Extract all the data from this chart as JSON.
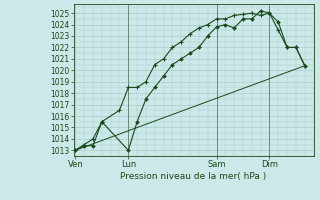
{
  "xlabel": "Pression niveau de la mer( hPa )",
  "bg_color": "#cce8e8",
  "grid_color": "#aacccc",
  "line_color": "#1a4a1a",
  "ylim": [
    1012.5,
    1025.8
  ],
  "yticks": [
    1013,
    1014,
    1015,
    1016,
    1017,
    1018,
    1019,
    1020,
    1021,
    1022,
    1023,
    1024,
    1025
  ],
  "xtick_labels": [
    "Ven",
    "Lun",
    "Sam",
    "Dim"
  ],
  "xtick_positions": [
    0,
    3,
    8,
    11
  ],
  "xlim": [
    -0.1,
    13.5
  ],
  "series1_x": [
    0,
    0.5,
    1.0,
    1.5,
    3.0,
    3.5,
    4.0,
    4.5,
    5.0,
    5.5,
    6.0,
    6.5,
    7.0,
    7.5,
    8.0,
    8.5,
    9.0,
    9.5,
    10.0,
    10.5,
    11.0,
    11.5,
    12.0,
    12.5,
    13.0
  ],
  "series1_y": [
    1013.0,
    1013.4,
    1013.4,
    1015.5,
    1013.0,
    1015.5,
    1017.5,
    1018.5,
    1019.5,
    1020.5,
    1021.0,
    1021.5,
    1022.0,
    1023.0,
    1023.8,
    1024.0,
    1023.7,
    1024.5,
    1024.5,
    1025.2,
    1025.0,
    1024.2,
    1022.0,
    1022.0,
    1020.4
  ],
  "series2_x": [
    0,
    0.5,
    1.0,
    1.5,
    2.5,
    3.0,
    3.5,
    4.0,
    4.5,
    5.0,
    5.5,
    6.0,
    6.5,
    7.0,
    7.5,
    8.0,
    8.5,
    9.0,
    9.5,
    10.0,
    10.5,
    11.0,
    11.5,
    12.0,
    12.5,
    13.0
  ],
  "series2_y": [
    1013.0,
    1013.5,
    1014.0,
    1015.5,
    1016.5,
    1018.5,
    1018.5,
    1019.0,
    1020.5,
    1021.0,
    1022.0,
    1022.5,
    1023.2,
    1023.7,
    1024.0,
    1024.5,
    1024.5,
    1024.8,
    1024.9,
    1025.0,
    1024.8,
    1025.0,
    1023.5,
    1022.0,
    1022.0,
    1020.4
  ],
  "series3_x": [
    0,
    13.0
  ],
  "series3_y": [
    1013.0,
    1020.4
  ]
}
